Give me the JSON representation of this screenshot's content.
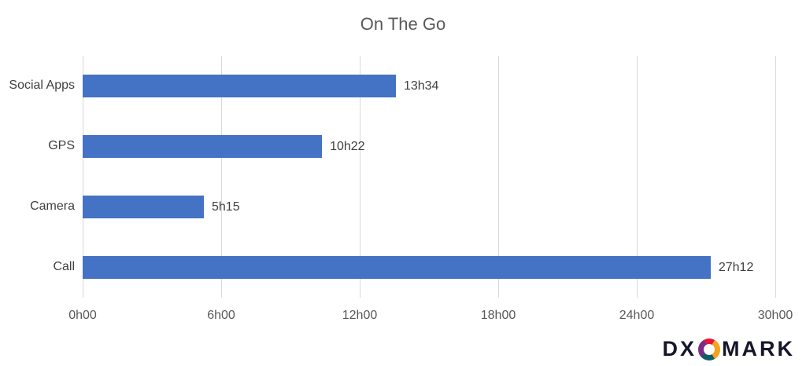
{
  "title": "On The Go",
  "chart_data": {
    "type": "bar",
    "orientation": "horizontal",
    "title": "On The Go",
    "categories": [
      "Social Apps",
      "GPS",
      "Camera",
      "Call"
    ],
    "values": [
      13.5667,
      10.3667,
      5.25,
      27.2
    ],
    "data_labels": [
      "13h34",
      "10h22",
      "5h15",
      "27h12"
    ],
    "x_ticks": [
      {
        "label": "0h00",
        "value": 0
      },
      {
        "label": "6h00",
        "value": 6
      },
      {
        "label": "12h00",
        "value": 12
      },
      {
        "label": "18h00",
        "value": 18
      },
      {
        "label": "24h00",
        "value": 24
      },
      {
        "label": "30h00",
        "value": 30
      }
    ],
    "xlim": [
      0,
      30
    ],
    "xlabel": "",
    "ylabel": "",
    "grid": true,
    "legend": "none",
    "bar_color": "#4472c4",
    "gridline_color": "#d9d9d9",
    "title_color": "#595959",
    "label_color": "#404040",
    "tick_color": "#595959"
  },
  "logo": {
    "prefix": "DX",
    "suffix": "MARK",
    "icon": "circular-swirl-icon",
    "text_color": "#16162b",
    "icon_colors": [
      "#e3173e",
      "#f5a31c",
      "#0e5e66",
      "#7c2b85"
    ]
  }
}
